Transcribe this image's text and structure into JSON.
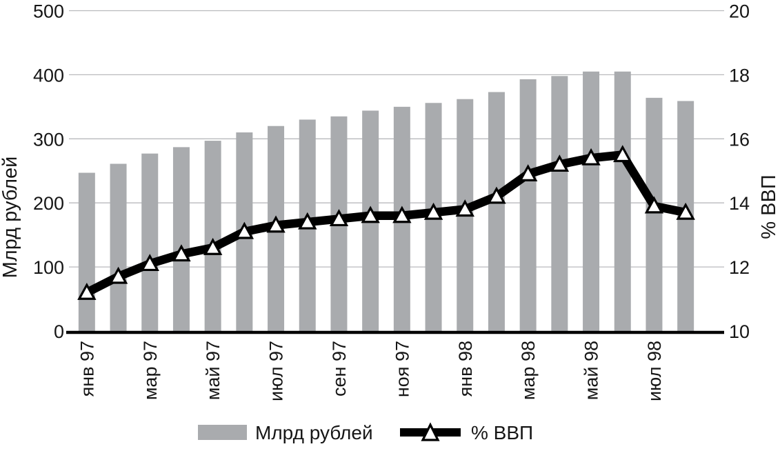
{
  "chart_data": {
    "type": "bar",
    "subtype": "combo-bar-line-dual-axis",
    "categories": [
      "янв 97",
      "фев 97",
      "мар 97",
      "апр 97",
      "май 97",
      "июн 97",
      "июл 97",
      "авг 97",
      "сен 97",
      "окт 97",
      "ноя 97",
      "дек 97",
      "янв 98",
      "фев 98",
      "мар 98",
      "апр 98",
      "май 98",
      "июн 98",
      "июл 98",
      "авг 98"
    ],
    "x_tick_labels": [
      "янв 97",
      "мар 97",
      "май 97",
      "июл 97",
      "сен 97",
      "ноя 97",
      "янв 98",
      "мар 98",
      "май 98",
      "июл 98"
    ],
    "series": [
      {
        "name": "Млрд рублей",
        "type": "bar",
        "axis": "left",
        "color": "#a9abae",
        "values": [
          247,
          261,
          277,
          287,
          297,
          310,
          320,
          330,
          335,
          344,
          350,
          356,
          362,
          373,
          393,
          398,
          405,
          405,
          364,
          359
        ]
      },
      {
        "name": "% ВВП",
        "type": "line",
        "axis": "right",
        "color": "#000000",
        "marker": "triangle-up-white",
        "values": [
          11.2,
          11.7,
          12.1,
          12.4,
          12.6,
          13.1,
          13.3,
          13.4,
          13.5,
          13.6,
          13.6,
          13.7,
          13.8,
          14.2,
          14.9,
          15.2,
          15.4,
          15.5,
          13.9,
          13.7
        ]
      }
    ],
    "left_axis": {
      "label": "Млрд рублей",
      "min": 0,
      "max": 500,
      "step": 100,
      "ticks": [
        "0",
        "100",
        "200",
        "300",
        "400",
        "500"
      ]
    },
    "right_axis": {
      "label": "% ВВП",
      "min": 10,
      "max": 20,
      "step": 2,
      "ticks": [
        "10",
        "12",
        "14",
        "16",
        "18",
        "20"
      ]
    },
    "grid": true,
    "legend_position": "bottom",
    "legend": [
      {
        "label": "Млрд рублей",
        "swatch": "bar"
      },
      {
        "label": "% ВВП",
        "swatch": "line-triangle"
      }
    ]
  },
  "colors": {
    "bar": "#a9abae",
    "line": "#000000",
    "marker_fill": "#ffffff",
    "grid": "#b9babd",
    "axis_line": "#000000",
    "text": "#161616",
    "background": "#ffffff"
  }
}
